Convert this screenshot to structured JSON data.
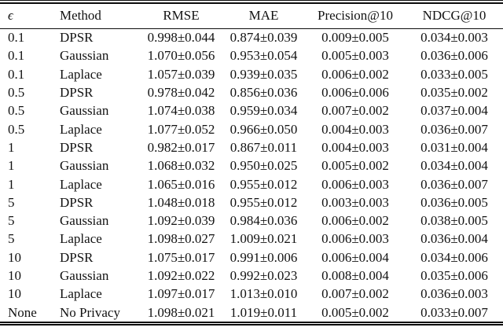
{
  "table": {
    "headers": [
      "ϵ",
      "Method",
      "RMSE",
      "MAE",
      "Precision@10",
      "NDCG@10"
    ],
    "rows": [
      [
        "0.1",
        "DPSR",
        "0.998±0.044",
        "0.874±0.039",
        "0.009±0.005",
        "0.034±0.003"
      ],
      [
        "0.1",
        "Gaussian",
        "1.070±0.056",
        "0.953±0.054",
        "0.005±0.003",
        "0.036±0.006"
      ],
      [
        "0.1",
        "Laplace",
        "1.057±0.039",
        "0.939±0.035",
        "0.006±0.002",
        "0.033±0.005"
      ],
      [
        "0.5",
        "DPSR",
        "0.978±0.042",
        "0.856±0.036",
        "0.006±0.006",
        "0.035±0.002"
      ],
      [
        "0.5",
        "Gaussian",
        "1.074±0.038",
        "0.959±0.034",
        "0.007±0.002",
        "0.037±0.004"
      ],
      [
        "0.5",
        "Laplace",
        "1.077±0.052",
        "0.966±0.050",
        "0.004±0.003",
        "0.036±0.007"
      ],
      [
        "1",
        "DPSR",
        "0.982±0.017",
        "0.867±0.011",
        "0.004±0.003",
        "0.031±0.004"
      ],
      [
        "1",
        "Gaussian",
        "1.068±0.032",
        "0.950±0.025",
        "0.005±0.002",
        "0.034±0.004"
      ],
      [
        "1",
        "Laplace",
        "1.065±0.016",
        "0.955±0.012",
        "0.006±0.003",
        "0.036±0.007"
      ],
      [
        "5",
        "DPSR",
        "1.048±0.018",
        "0.955±0.012",
        "0.003±0.003",
        "0.036±0.005"
      ],
      [
        "5",
        "Gaussian",
        "1.092±0.039",
        "0.984±0.036",
        "0.006±0.002",
        "0.038±0.005"
      ],
      [
        "5",
        "Laplace",
        "1.098±0.027",
        "1.009±0.021",
        "0.006±0.003",
        "0.036±0.004"
      ],
      [
        "10",
        "DPSR",
        "1.075±0.017",
        "0.991±0.006",
        "0.006±0.004",
        "0.034±0.006"
      ],
      [
        "10",
        "Gaussian",
        "1.092±0.022",
        "0.992±0.023",
        "0.008±0.004",
        "0.035±0.006"
      ],
      [
        "10",
        "Laplace",
        "1.097±0.017",
        "1.013±0.010",
        "0.007±0.002",
        "0.036±0.003"
      ],
      [
        "None",
        "No Privacy",
        "1.098±0.021",
        "1.019±0.011",
        "0.005±0.002",
        "0.033±0.007"
      ]
    ]
  },
  "chart_data": {
    "type": "table",
    "title": "",
    "columns": [
      "ϵ",
      "Method",
      "RMSE",
      "MAE",
      "Precision@10",
      "NDCG@10"
    ],
    "rows": [
      [
        "0.1",
        "DPSR",
        "0.998±0.044",
        "0.874±0.039",
        "0.009±0.005",
        "0.034±0.003"
      ],
      [
        "0.1",
        "Gaussian",
        "1.070±0.056",
        "0.953±0.054",
        "0.005±0.003",
        "0.036±0.006"
      ],
      [
        "0.1",
        "Laplace",
        "1.057±0.039",
        "0.939±0.035",
        "0.006±0.002",
        "0.033±0.005"
      ],
      [
        "0.5",
        "DPSR",
        "0.978±0.042",
        "0.856±0.036",
        "0.006±0.006",
        "0.035±0.002"
      ],
      [
        "0.5",
        "Gaussian",
        "1.074±0.038",
        "0.959±0.034",
        "0.007±0.002",
        "0.037±0.004"
      ],
      [
        "0.5",
        "Laplace",
        "1.077±0.052",
        "0.966±0.050",
        "0.004±0.003",
        "0.036±0.007"
      ],
      [
        "1",
        "DPSR",
        "0.982±0.017",
        "0.867±0.011",
        "0.004±0.003",
        "0.031±0.004"
      ],
      [
        "1",
        "Gaussian",
        "1.068±0.032",
        "0.950±0.025",
        "0.005±0.002",
        "0.034±0.004"
      ],
      [
        "1",
        "Laplace",
        "1.065±0.016",
        "0.955±0.012",
        "0.006±0.003",
        "0.036±0.007"
      ],
      [
        "5",
        "DPSR",
        "1.048±0.018",
        "0.955±0.012",
        "0.003±0.003",
        "0.036±0.005"
      ],
      [
        "5",
        "Gaussian",
        "1.092±0.039",
        "0.984±0.036",
        "0.006±0.002",
        "0.038±0.005"
      ],
      [
        "5",
        "Laplace",
        "1.098±0.027",
        "1.009±0.021",
        "0.006±0.003",
        "0.036±0.004"
      ],
      [
        "10",
        "DPSR",
        "1.075±0.017",
        "0.991±0.006",
        "0.006±0.004",
        "0.034±0.006"
      ],
      [
        "10",
        "Gaussian",
        "1.092±0.022",
        "0.992±0.023",
        "0.008±0.004",
        "0.035±0.006"
      ],
      [
        "10",
        "Laplace",
        "1.097±0.017",
        "1.013±0.010",
        "0.007±0.002",
        "0.036±0.003"
      ],
      [
        "None",
        "No Privacy",
        "1.098±0.021",
        "1.019±0.011",
        "0.005±0.002",
        "0.033±0.007"
      ]
    ]
  },
  "colors": {
    "background": "#ffffff",
    "text": "#121212",
    "rule": "#0d0d0d"
  }
}
